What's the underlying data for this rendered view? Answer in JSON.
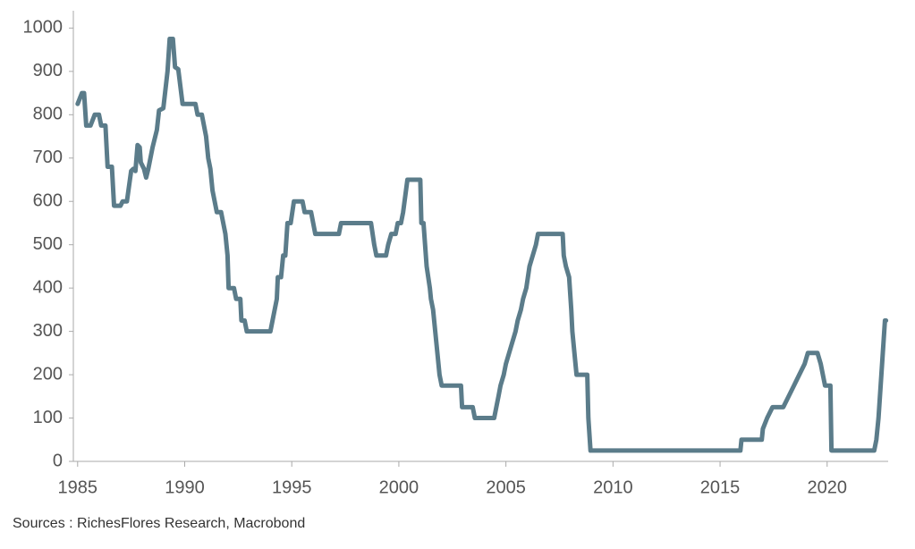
{
  "chart_data": {
    "type": "line",
    "source": "Sources : RichesFlores Research, Macrobond",
    "color": "#5b7c8a",
    "xlim": [
      1984.8,
      2022.85
    ],
    "xticks": [
      1985,
      1990,
      1995,
      2000,
      2005,
      2010,
      2015,
      2020
    ],
    "ylim": [
      0,
      1040
    ],
    "yticks": [
      0,
      100,
      200,
      300,
      400,
      500,
      600,
      700,
      800,
      900,
      1000
    ],
    "x": [
      1985.0,
      1985.2,
      1985.3,
      1985.4,
      1985.6,
      1985.8,
      1986.0,
      1986.1,
      1986.3,
      1986.4,
      1986.6,
      1986.7,
      1987.0,
      1987.1,
      1987.3,
      1987.5,
      1987.6,
      1987.7,
      1987.8,
      1987.9,
      1987.95,
      1988.1,
      1988.2,
      1988.3,
      1988.5,
      1988.7,
      1988.8,
      1989.0,
      1989.2,
      1989.3,
      1989.45,
      1989.55,
      1989.7,
      1989.9,
      1990.5,
      1990.6,
      1990.8,
      1991.0,
      1991.1,
      1991.2,
      1991.3,
      1991.5,
      1991.7,
      1991.9,
      1992.0,
      1992.05,
      1992.3,
      1992.4,
      1992.6,
      1992.65,
      1992.8,
      1992.9,
      1994.0,
      1994.1,
      1994.3,
      1994.35,
      1994.5,
      1994.6,
      1994.7,
      1994.8,
      1994.95,
      1995.1,
      1995.5,
      1995.6,
      1995.9,
      1996.1,
      1997.2,
      1997.3,
      1998.7,
      1998.85,
      1998.95,
      1999.4,
      1999.5,
      1999.65,
      1999.85,
      1999.95,
      2000.1,
      2000.2,
      2000.4,
      2001.0,
      2001.05,
      2001.15,
      2001.3,
      2001.45,
      2001.5,
      2001.6,
      2001.7,
      2001.8,
      2001.9,
      2002.0,
      2002.9,
      2002.95,
      2003.45,
      2003.55,
      2004.45,
      2004.55,
      2004.65,
      2004.75,
      2004.9,
      2005.0,
      2005.15,
      2005.3,
      2005.45,
      2005.55,
      2005.7,
      2005.8,
      2005.95,
      2006.1,
      2006.25,
      2006.4,
      2006.5,
      2007.65,
      2007.7,
      2007.8,
      2007.95,
      2008.05,
      2008.1,
      2008.25,
      2008.3,
      2008.8,
      2008.85,
      2008.95,
      2015.95,
      2016.0,
      2016.95,
      2017.0,
      2017.2,
      2017.45,
      2017.95,
      2018.2,
      2018.45,
      2018.7,
      2018.95,
      2019.1,
      2019.55,
      2019.7,
      2019.8,
      2019.9,
      2020.15,
      2020.2,
      2022.2,
      2022.3,
      2022.4,
      2022.5,
      2022.6,
      2022.7,
      2022.75
    ],
    "values": [
      825,
      850,
      850,
      775,
      775,
      800,
      800,
      775,
      775,
      680,
      680,
      590,
      590,
      600,
      600,
      670,
      675,
      670,
      730,
      725,
      690,
      675,
      655,
      675,
      725,
      765,
      810,
      815,
      900,
      975,
      975,
      910,
      905,
      825,
      825,
      800,
      800,
      750,
      700,
      675,
      625,
      575,
      575,
      525,
      475,
      400,
      400,
      375,
      375,
      325,
      325,
      300,
      300,
      325,
      375,
      425,
      425,
      475,
      475,
      550,
      550,
      600,
      600,
      575,
      575,
      525,
      525,
      550,
      550,
      500,
      475,
      475,
      500,
      525,
      525,
      550,
      550,
      575,
      650,
      650,
      550,
      550,
      450,
      400,
      375,
      350,
      300,
      250,
      200,
      175,
      175,
      125,
      125,
      100,
      100,
      125,
      150,
      175,
      200,
      225,
      250,
      275,
      300,
      325,
      350,
      375,
      400,
      450,
      475,
      500,
      525,
      525,
      475,
      450,
      425,
      350,
      300,
      225,
      200,
      200,
      100,
      25,
      25,
      50,
      50,
      75,
      100,
      125,
      125,
      150,
      175,
      200,
      225,
      250,
      250,
      225,
      200,
      175,
      175,
      25,
      25,
      50,
      100,
      175,
      250,
      325,
      325
    ]
  }
}
